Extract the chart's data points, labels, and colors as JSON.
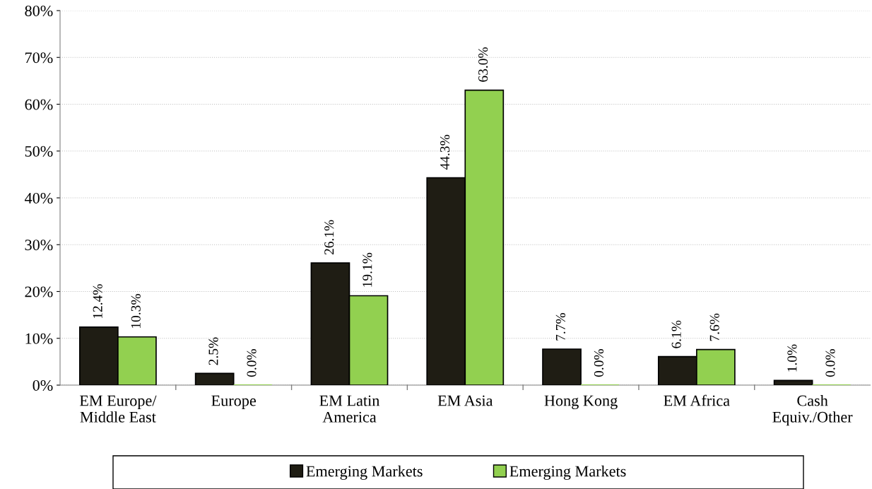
{
  "chart_data": {
    "type": "bar",
    "categories": [
      "EM Europe/\nMiddle East",
      "Europe",
      "EM Latin\nAmerica",
      "EM Asia",
      "Hong Kong",
      "EM Africa",
      "Cash\nEquiv./Other"
    ],
    "series": [
      {
        "name": "Emerging Markets",
        "color": "#1f1d14",
        "values": [
          12.4,
          2.5,
          26.1,
          44.3,
          7.7,
          6.1,
          1.0
        ],
        "value_labels": [
          "12.4%",
          "2.5%",
          "26.1%",
          "44.3%",
          "7.7%",
          "6.1%",
          "1.0%"
        ]
      },
      {
        "name": "Emerging Markets",
        "color": "#92d050",
        "values": [
          10.3,
          0.0,
          19.1,
          63.0,
          0.0,
          7.6,
          0.0
        ],
        "value_labels": [
          "10.3%",
          "0.0%",
          "19.1%",
          "63.0%",
          "0.0%",
          "7.6%",
          "0.0%"
        ]
      }
    ],
    "ylim": [
      0,
      80
    ],
    "yticks": [
      {
        "value": 0,
        "label": "0%"
      },
      {
        "value": 10,
        "label": "10%"
      },
      {
        "value": 20,
        "label": "20%"
      },
      {
        "value": 30,
        "label": "30%"
      },
      {
        "value": 40,
        "label": "40%"
      },
      {
        "value": 50,
        "label": "50%"
      },
      {
        "value": 60,
        "label": "60%"
      },
      {
        "value": 70,
        "label": "70%"
      },
      {
        "value": 80,
        "label": "80%"
      }
    ],
    "grid": "y",
    "legend": "bottom"
  }
}
